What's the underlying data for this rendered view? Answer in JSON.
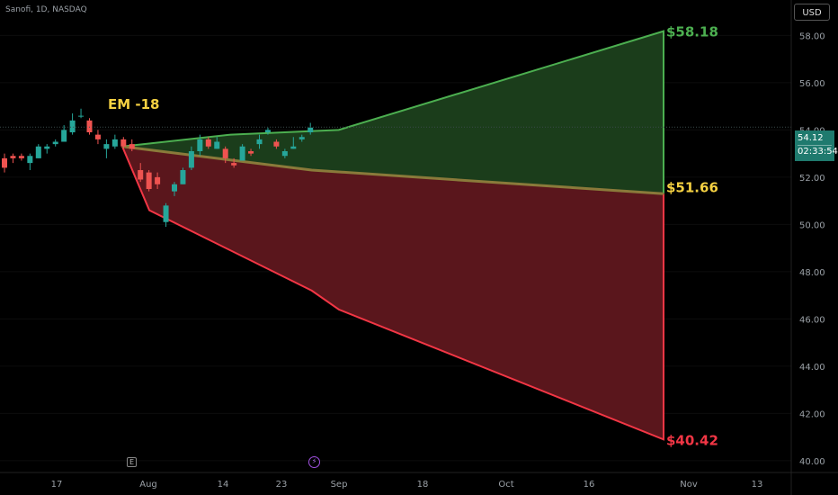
{
  "header": {
    "symbol": "Sanofi, 1D, NASDAQ",
    "currency": "USD"
  },
  "price_tag": {
    "price": "54.12",
    "countdown": "02:33:54"
  },
  "events": {
    "earnings": "E",
    "dividend": "⚡"
  },
  "colors": {
    "up": "#26a69a",
    "down": "#ef5350",
    "upper_fill": "#1b3d1b",
    "upper_line": "#4caf50",
    "lower_fill": "#5a161c",
    "lower_line": "#f23645",
    "mid_line": "#8a7a3a",
    "label_green": "#4caf50",
    "label_yellow": "#f5d142",
    "label_red": "#f23645",
    "axis_text": "#9aa0a6"
  },
  "chart_data": {
    "type": "candlestick",
    "y_axis": {
      "ticks": [
        "58.00",
        "56.00",
        "54.00",
        "52.00",
        "50.00",
        "48.00",
        "46.00",
        "44.00",
        "42.00",
        "40.00"
      ],
      "ylim": [
        39.5,
        59.5
      ]
    },
    "x_axis": {
      "ticks": [
        "17",
        "Aug",
        "14",
        "23",
        "Sep",
        "18",
        "Oct",
        "16",
        "Nov",
        "13"
      ]
    },
    "last_price": 54.12,
    "annotations": {
      "em_label": "EM -18",
      "upper_label": "$58.18",
      "mid_label": "$51.66",
      "lower_label": "$40.42"
    },
    "expected_move": {
      "upper": [
        [
          0.0,
          53.3
        ],
        [
          0.2,
          53.8
        ],
        [
          0.4,
          54.0
        ],
        [
          1.0,
          58.18
        ]
      ],
      "middle": [
        [
          0.0,
          53.3
        ],
        [
          0.35,
          52.3
        ],
        [
          1.0,
          51.3
        ]
      ],
      "lower": [
        [
          0.0,
          53.3
        ],
        [
          0.05,
          50.6
        ],
        [
          0.35,
          47.2
        ],
        [
          0.4,
          46.4
        ],
        [
          1.0,
          40.9
        ]
      ]
    },
    "candles": [
      {
        "o": 52.8,
        "h": 53.0,
        "l": 52.2,
        "c": 52.4
      },
      {
        "o": 52.9,
        "h": 53.0,
        "l": 52.6,
        "c": 52.8
      },
      {
        "o": 52.9,
        "h": 53.0,
        "l": 52.7,
        "c": 52.8
      },
      {
        "o": 52.6,
        "h": 53.0,
        "l": 52.3,
        "c": 52.9
      },
      {
        "o": 52.8,
        "h": 53.4,
        "l": 52.8,
        "c": 53.3
      },
      {
        "o": 53.2,
        "h": 53.4,
        "l": 53.0,
        "c": 53.3
      },
      {
        "o": 53.4,
        "h": 53.6,
        "l": 53.3,
        "c": 53.5
      },
      {
        "o": 53.5,
        "h": 54.2,
        "l": 53.5,
        "c": 54.0
      },
      {
        "o": 53.9,
        "h": 54.7,
        "l": 53.8,
        "c": 54.4
      },
      {
        "o": 54.6,
        "h": 54.9,
        "l": 54.5,
        "c": 54.6
      },
      {
        "o": 54.4,
        "h": 54.5,
        "l": 53.8,
        "c": 53.9
      },
      {
        "o": 53.8,
        "h": 54.0,
        "l": 53.4,
        "c": 53.6
      },
      {
        "o": 53.2,
        "h": 53.6,
        "l": 52.8,
        "c": 53.4
      },
      {
        "o": 53.3,
        "h": 53.8,
        "l": 53.2,
        "c": 53.6
      },
      {
        "o": 53.6,
        "h": 53.7,
        "l": 53.2,
        "c": 53.3
      },
      {
        "o": 53.4,
        "h": 53.6,
        "l": 53.1,
        "c": 53.2
      },
      {
        "o": 52.3,
        "h": 52.6,
        "l": 51.8,
        "c": 51.9
      },
      {
        "o": 52.2,
        "h": 52.3,
        "l": 51.4,
        "c": 51.5
      },
      {
        "o": 52.0,
        "h": 52.2,
        "l": 51.5,
        "c": 51.7
      },
      {
        "o": 50.1,
        "h": 50.9,
        "l": 49.9,
        "c": 50.8
      },
      {
        "o": 51.4,
        "h": 51.8,
        "l": 51.2,
        "c": 51.7
      },
      {
        "o": 51.7,
        "h": 52.4,
        "l": 51.7,
        "c": 52.3
      },
      {
        "o": 52.4,
        "h": 53.3,
        "l": 52.3,
        "c": 53.1
      },
      {
        "o": 53.1,
        "h": 53.8,
        "l": 52.9,
        "c": 53.6
      },
      {
        "o": 53.6,
        "h": 53.7,
        "l": 53.2,
        "c": 53.3
      },
      {
        "o": 53.2,
        "h": 53.7,
        "l": 53.2,
        "c": 53.5
      },
      {
        "o": 53.2,
        "h": 53.3,
        "l": 52.6,
        "c": 52.8
      },
      {
        "o": 52.6,
        "h": 52.8,
        "l": 52.4,
        "c": 52.5
      },
      {
        "o": 52.7,
        "h": 53.4,
        "l": 52.7,
        "c": 53.3
      },
      {
        "o": 53.1,
        "h": 53.2,
        "l": 52.9,
        "c": 53.0
      },
      {
        "o": 53.4,
        "h": 53.8,
        "l": 53.2,
        "c": 53.6
      },
      {
        "o": 53.9,
        "h": 54.1,
        "l": 53.8,
        "c": 54.0
      },
      {
        "o": 53.5,
        "h": 53.6,
        "l": 53.2,
        "c": 53.3
      },
      {
        "o": 52.9,
        "h": 53.2,
        "l": 52.8,
        "c": 53.1
      },
      {
        "o": 53.2,
        "h": 53.7,
        "l": 53.2,
        "c": 53.3
      },
      {
        "o": 53.6,
        "h": 53.8,
        "l": 53.5,
        "c": 53.7
      },
      {
        "o": 53.9,
        "h": 54.3,
        "l": 53.8,
        "c": 54.1
      }
    ]
  }
}
